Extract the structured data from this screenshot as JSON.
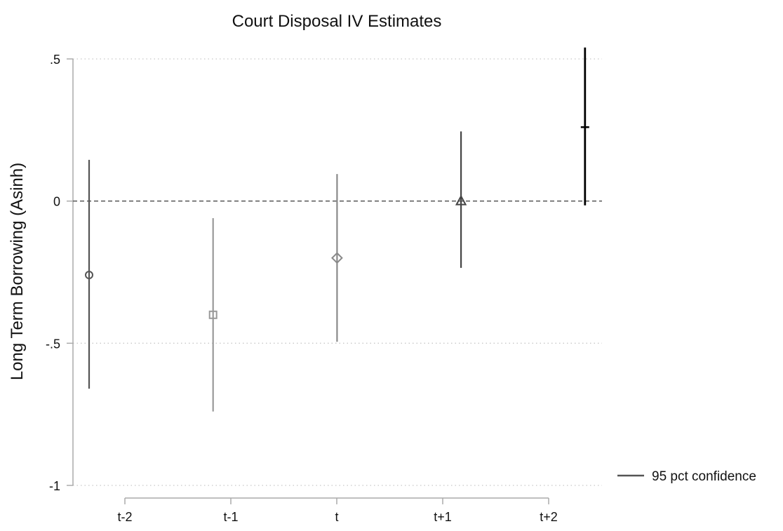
{
  "chart_data": {
    "type": "scatter",
    "subtype": "coefficient-plot-with-confidence-intervals",
    "title": "Court Disposal IV Estimates",
    "ylabel": "Long Term Borrowing (Asinh)",
    "xlabel": "",
    "categories": [
      "t-2",
      "t-1",
      "t",
      "t+1",
      "t+2"
    ],
    "yticks": [
      ".5",
      "0",
      "-.5",
      "-1"
    ],
    "ylim": [
      -1,
      0.5
    ],
    "grid": "horizontal dotted",
    "reference_line": 0,
    "legend_label": "95 pct confidence",
    "legend_position": "right",
    "series": [
      {
        "category": "t-2",
        "estimate": -0.26,
        "ci_low": -0.66,
        "ci_high": 0.145,
        "marker": "circle",
        "color": "#555555"
      },
      {
        "category": "t-1",
        "estimate": -0.4,
        "ci_low": -0.74,
        "ci_high": -0.06,
        "marker": "square",
        "color": "#999999"
      },
      {
        "category": "t",
        "estimate": -0.2,
        "ci_low": -0.495,
        "ci_high": 0.095,
        "marker": "diamond",
        "color": "#8a8a8a"
      },
      {
        "category": "t+1",
        "estimate": 0.0,
        "ci_low": -0.235,
        "ci_high": 0.245,
        "marker": "triangle",
        "color": "#444444"
      },
      {
        "category": "t+2",
        "estimate": 0.26,
        "ci_low": -0.015,
        "ci_high": 0.54,
        "marker": "dash",
        "color": "#000000"
      }
    ]
  }
}
